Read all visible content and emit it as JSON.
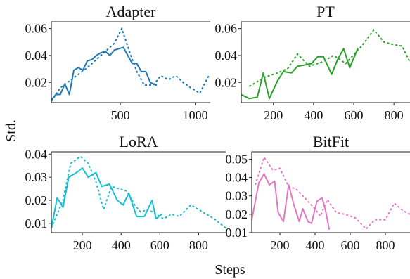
{
  "figure": {
    "xlabel": "Steps",
    "ylabel": "Std."
  },
  "chart_data": [
    {
      "type": "line",
      "title": "Adapter",
      "color": "#1f77b4",
      "xlim": [
        40,
        1100
      ],
      "ylim": [
        0.005,
        0.065
      ],
      "xticks": [
        500,
        1000
      ],
      "yticks": [
        0.02,
        0.04,
        0.06
      ],
      "ytick_labels": [
        "0.02",
        "0.04",
        "0.06"
      ],
      "series": [
        {
          "style": "solid",
          "x": [
            40,
            70,
            100,
            130,
            160,
            190,
            220,
            250,
            280,
            310,
            340,
            370,
            400,
            430,
            460,
            490,
            520,
            550,
            580,
            610,
            640,
            670,
            700,
            740
          ],
          "y": [
            0.007,
            0.011,
            0.011,
            0.019,
            0.011,
            0.029,
            0.031,
            0.029,
            0.036,
            0.037,
            0.04,
            0.042,
            0.043,
            0.04,
            0.044,
            0.045,
            0.046,
            0.04,
            0.034,
            0.034,
            0.028,
            0.028,
            0.02,
            0.018
          ]
        },
        {
          "style": "dotted",
          "x": [
            40,
            100,
            160,
            220,
            280,
            340,
            400,
            460,
            510,
            560,
            610,
            660,
            720,
            770,
            820,
            870,
            920,
            970,
            1030,
            1090
          ],
          "y": [
            0.006,
            0.016,
            0.021,
            0.026,
            0.031,
            0.037,
            0.043,
            0.049,
            0.06,
            0.043,
            0.028,
            0.018,
            0.018,
            0.025,
            0.022,
            0.025,
            0.02,
            0.016,
            0.012,
            0.025
          ]
        }
      ]
    },
    {
      "type": "line",
      "title": "PT",
      "color": "#2ca02c",
      "xlim": [
        40,
        880
      ],
      "ylim": [
        0.005,
        0.065
      ],
      "xticks": [
        200,
        400,
        600,
        800
      ],
      "yticks": [
        0.02,
        0.04,
        0.06
      ],
      "ytick_labels": [
        "0.02",
        "0.04",
        "0.06"
      ],
      "series": [
        {
          "style": "solid",
          "x": [
            40,
            80,
            120,
            150,
            180,
            220,
            250,
            290,
            320,
            360,
            390,
            420,
            450,
            490,
            520,
            550,
            580,
            620
          ],
          "y": [
            0.011,
            0.008,
            0.009,
            0.027,
            0.008,
            0.021,
            0.028,
            0.027,
            0.032,
            0.033,
            0.034,
            0.039,
            0.039,
            0.026,
            0.037,
            0.045,
            0.031,
            0.045
          ]
        },
        {
          "style": "dotted",
          "x": [
            80,
            160,
            220,
            270,
            320,
            380,
            440,
            500,
            560,
            640,
            700,
            750,
            800,
            840,
            880
          ],
          "y": [
            0.017,
            0.024,
            0.027,
            0.03,
            0.041,
            0.032,
            0.035,
            0.04,
            0.034,
            0.047,
            0.059,
            0.05,
            0.048,
            0.047,
            0.035
          ]
        }
      ]
    },
    {
      "type": "line",
      "title": "LoRA",
      "color": "#17becf",
      "xlim": [
        40,
        940
      ],
      "ylim": [
        0.006,
        0.041
      ],
      "xticks": [
        200,
        400,
        600,
        800
      ],
      "yticks": [
        0.01,
        0.02,
        0.03,
        0.04
      ],
      "ytick_labels": [
        "0.01",
        "0.02",
        "0.03",
        "0.04"
      ],
      "series": [
        {
          "style": "solid",
          "x": [
            40,
            70,
            100,
            130,
            170,
            200,
            230,
            270,
            300,
            340,
            380,
            410,
            440,
            480,
            520,
            560,
            580,
            610
          ],
          "y": [
            0.008,
            0.021,
            0.017,
            0.03,
            0.032,
            0.034,
            0.03,
            0.032,
            0.026,
            0.027,
            0.02,
            0.018,
            0.023,
            0.013,
            0.013,
            0.02,
            0.012,
            0.014
          ]
        },
        {
          "style": "dotted",
          "x": [
            40,
            100,
            140,
            190,
            230,
            270,
            310,
            350,
            390,
            430,
            470,
            500,
            540,
            580,
            620,
            660,
            700,
            760,
            820,
            880,
            940
          ],
          "y": [
            0.008,
            0.02,
            0.036,
            0.039,
            0.036,
            0.028,
            0.016,
            0.026,
            0.025,
            0.024,
            0.018,
            0.015,
            0.016,
            0.014,
            0.012,
            0.014,
            0.013,
            0.018,
            0.015,
            0.012,
            0.008
          ]
        }
      ]
    },
    {
      "type": "line",
      "title": "BitFit",
      "color": "#e377c2",
      "xlim": [
        40,
        940
      ],
      "ylim": [
        0.01,
        0.054
      ],
      "xticks": [
        200,
        400,
        600,
        800
      ],
      "yticks": [
        0.01,
        0.02,
        0.03,
        0.04,
        0.05
      ],
      "ytick_labels": [
        "0.01",
        "0.02",
        "0.03",
        "0.04",
        "0.05"
      ],
      "series": [
        {
          "style": "solid",
          "x": [
            40,
            80,
            110,
            140,
            170,
            190,
            220,
            250,
            280,
            310,
            330,
            360,
            380,
            410,
            440,
            460,
            480
          ],
          "y": [
            0.017,
            0.037,
            0.042,
            0.036,
            0.038,
            0.021,
            0.016,
            0.036,
            0.025,
            0.016,
            0.023,
            0.016,
            0.015,
            0.027,
            0.029,
            0.022,
            0.012
          ]
        },
        {
          "style": "dotted",
          "x": [
            60,
            110,
            160,
            200,
            250,
            290,
            340,
            390,
            430,
            470,
            520,
            570,
            630,
            690,
            740,
            800,
            850,
            900,
            940
          ],
          "y": [
            0.036,
            0.051,
            0.044,
            0.045,
            0.035,
            0.034,
            0.029,
            0.024,
            0.019,
            0.028,
            0.021,
            0.02,
            0.018,
            0.012,
            0.017,
            0.017,
            0.026,
            0.022,
            0.02
          ]
        }
      ]
    }
  ]
}
